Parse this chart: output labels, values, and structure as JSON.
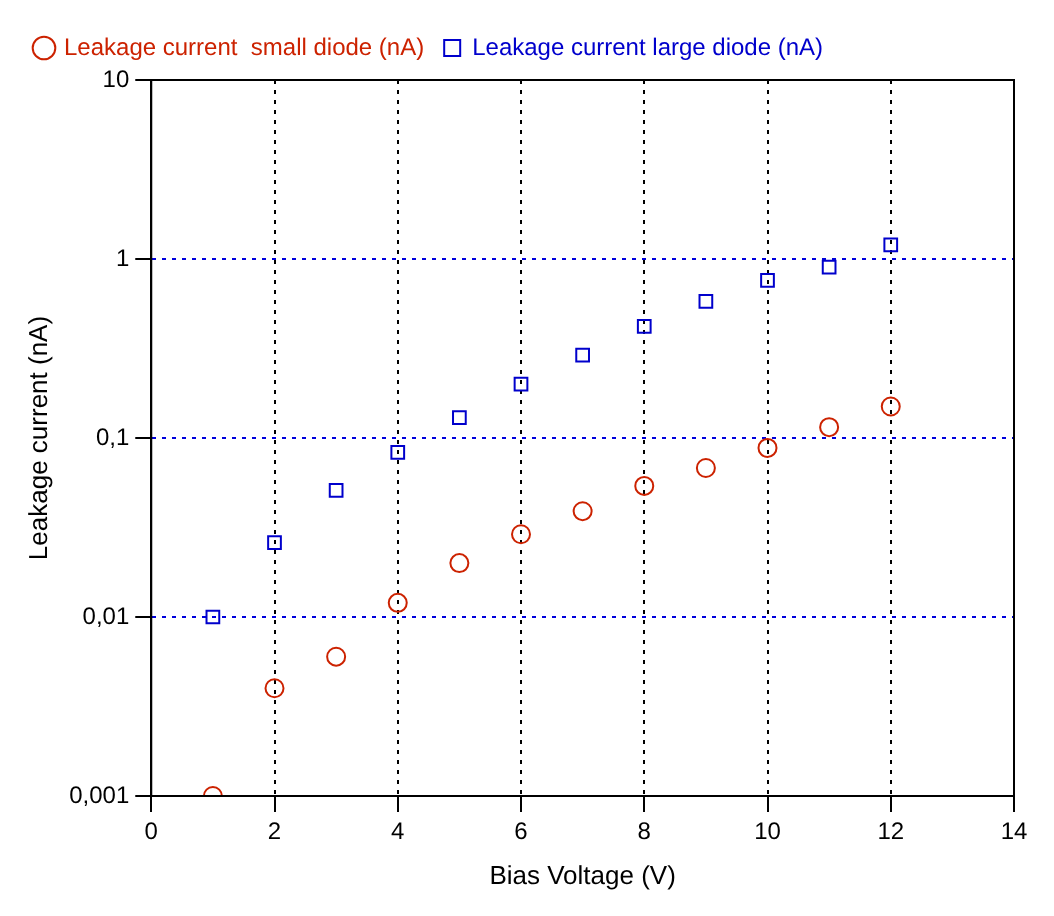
{
  "chart_data": {
    "type": "scatter",
    "xlabel": "Bias Voltage (V)",
    "ylabel": "Leakage current (nA)",
    "x": [
      1,
      2,
      3,
      4,
      5,
      6,
      7,
      8,
      9,
      10,
      11,
      12
    ],
    "series": [
      {
        "name": "Leakage current  small diode (nA)",
        "color": "#cc2200",
        "marker": "circle",
        "values": [
          0.001,
          0.004,
          0.006,
          0.012,
          0.02,
          0.029,
          0.039,
          0.054,
          0.068,
          0.088,
          0.115,
          0.15
        ]
      },
      {
        "name": "Leakage current large diode (nA)",
        "color": "#0000cc",
        "marker": "square",
        "values": [
          0.01,
          0.026,
          0.051,
          0.083,
          0.13,
          0.2,
          0.29,
          0.42,
          0.58,
          0.76,
          0.9,
          1.2
        ]
      }
    ],
    "log": "y",
    "xlim": [
      0,
      14
    ],
    "xticks": [
      0,
      2,
      4,
      6,
      8,
      10,
      12,
      14
    ],
    "ylim": [
      0.001,
      10
    ],
    "yticks": [
      {
        "value": 0.001,
        "label": "0,001"
      },
      {
        "value": 0.01,
        "label": "0,01"
      },
      {
        "value": 0.1,
        "label": "0,1"
      },
      1,
      10
    ],
    "grid": true,
    "legend": "top left"
  }
}
